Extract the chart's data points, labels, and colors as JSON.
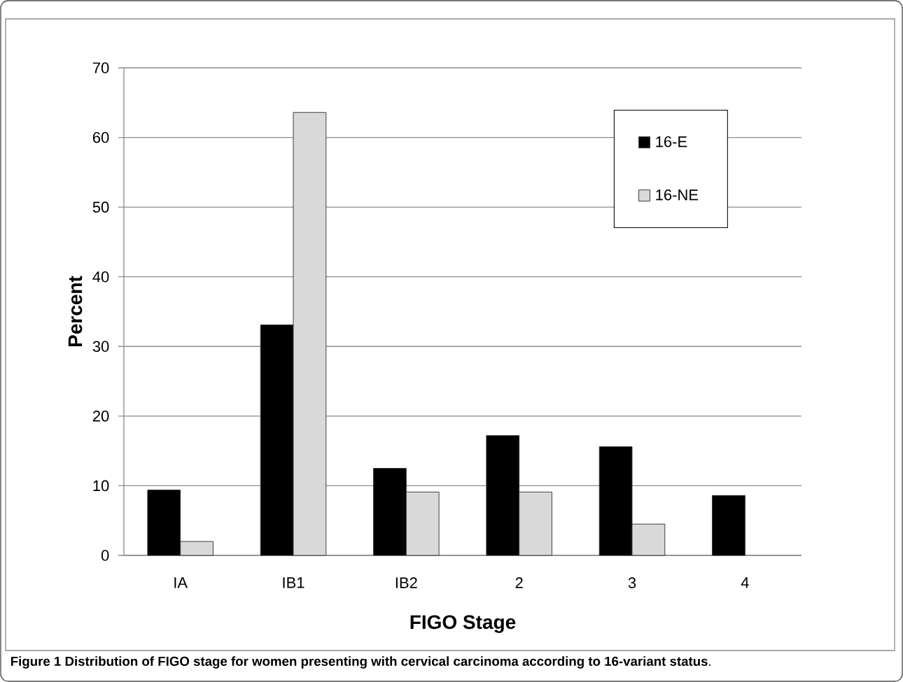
{
  "chart_data": {
    "type": "bar",
    "xlabel": "FIGO Stage",
    "ylabel": "Percent",
    "categories": [
      "IA",
      "IB1",
      "IB2",
      "2",
      "3",
      "4"
    ],
    "series": [
      {
        "name": "16-E",
        "color": "#000000",
        "values": [
          9.4,
          33.1,
          12.5,
          17.2,
          15.6,
          8.6
        ]
      },
      {
        "name": "16-NE",
        "color": "#d9d9d9",
        "values": [
          2.0,
          63.6,
          9.1,
          9.1,
          4.5,
          null
        ]
      }
    ],
    "ylim": [
      0,
      70
    ],
    "yticks": [
      0,
      10,
      20,
      30,
      40,
      50,
      60,
      70
    ],
    "grid": "y",
    "legend": "top right",
    "annotations": [
      "**Figure 1 Distribution of FIGO stage for women presenting with cervical carcinoma according to 16-variant status**."
    ]
  }
}
